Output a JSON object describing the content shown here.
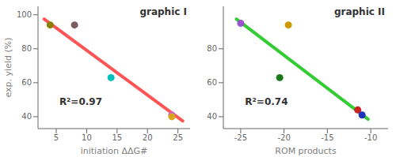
{
  "chart_data": [
    {
      "type": "scatter",
      "title": "graphic I",
      "series": [
        {
          "type": "line",
          "x": [
            3.0,
            25.8
          ],
          "values": [
            97.5,
            37.5
          ],
          "color": "#FF5555"
        },
        {
          "type": "scatter",
          "x": [
            4.0,
            8.0,
            14.0,
            24.0,
            24.0
          ],
          "values": [
            94,
            94,
            63,
            41,
            40
          ],
          "colors": [
            "#8B8000",
            "#7B5B5B",
            "#00BFBF",
            "#CC66CC",
            "#DAA520"
          ]
        }
      ],
      "annotations": [
        {
          "text": "R²=0.97",
          "x": 5.5,
          "y": 47
        }
      ],
      "xlabel": "initiation ΔΔG#",
      "ylabel": "exp. yield (%)",
      "xlim": [
        2,
        27
      ],
      "ylim": [
        33,
        105
      ],
      "xticks": [
        5,
        10,
        15,
        20,
        25
      ],
      "yticks": [
        40,
        60,
        80,
        100
      ]
    },
    {
      "type": "scatter",
      "title": "graphic II",
      "series": [
        {
          "type": "line",
          "x": [
            -25.5,
            -10.3
          ],
          "values": [
            97.5,
            38.5
          ],
          "color": "#33CC33"
        },
        {
          "type": "scatter",
          "x": [
            -25.0,
            -20.5,
            -19.5,
            -11.5,
            -11.0
          ],
          "values": [
            95,
            63,
            94,
            44,
            41
          ],
          "colors": [
            "#9955CC",
            "#1A7A1A",
            "#CC9900",
            "#CC2222",
            "#2233BB"
          ]
        }
      ],
      "annotations": [
        {
          "text": "R²=0.74",
          "x": -24.5,
          "y": 47
        }
      ],
      "xlabel": "ROM products",
      "xlim": [
        -27,
        -8
      ],
      "ylim": [
        33,
        105
      ],
      "xticks": [
        -25,
        -20,
        -15,
        -10
      ],
      "yticks": [
        40,
        60,
        80
      ]
    }
  ]
}
